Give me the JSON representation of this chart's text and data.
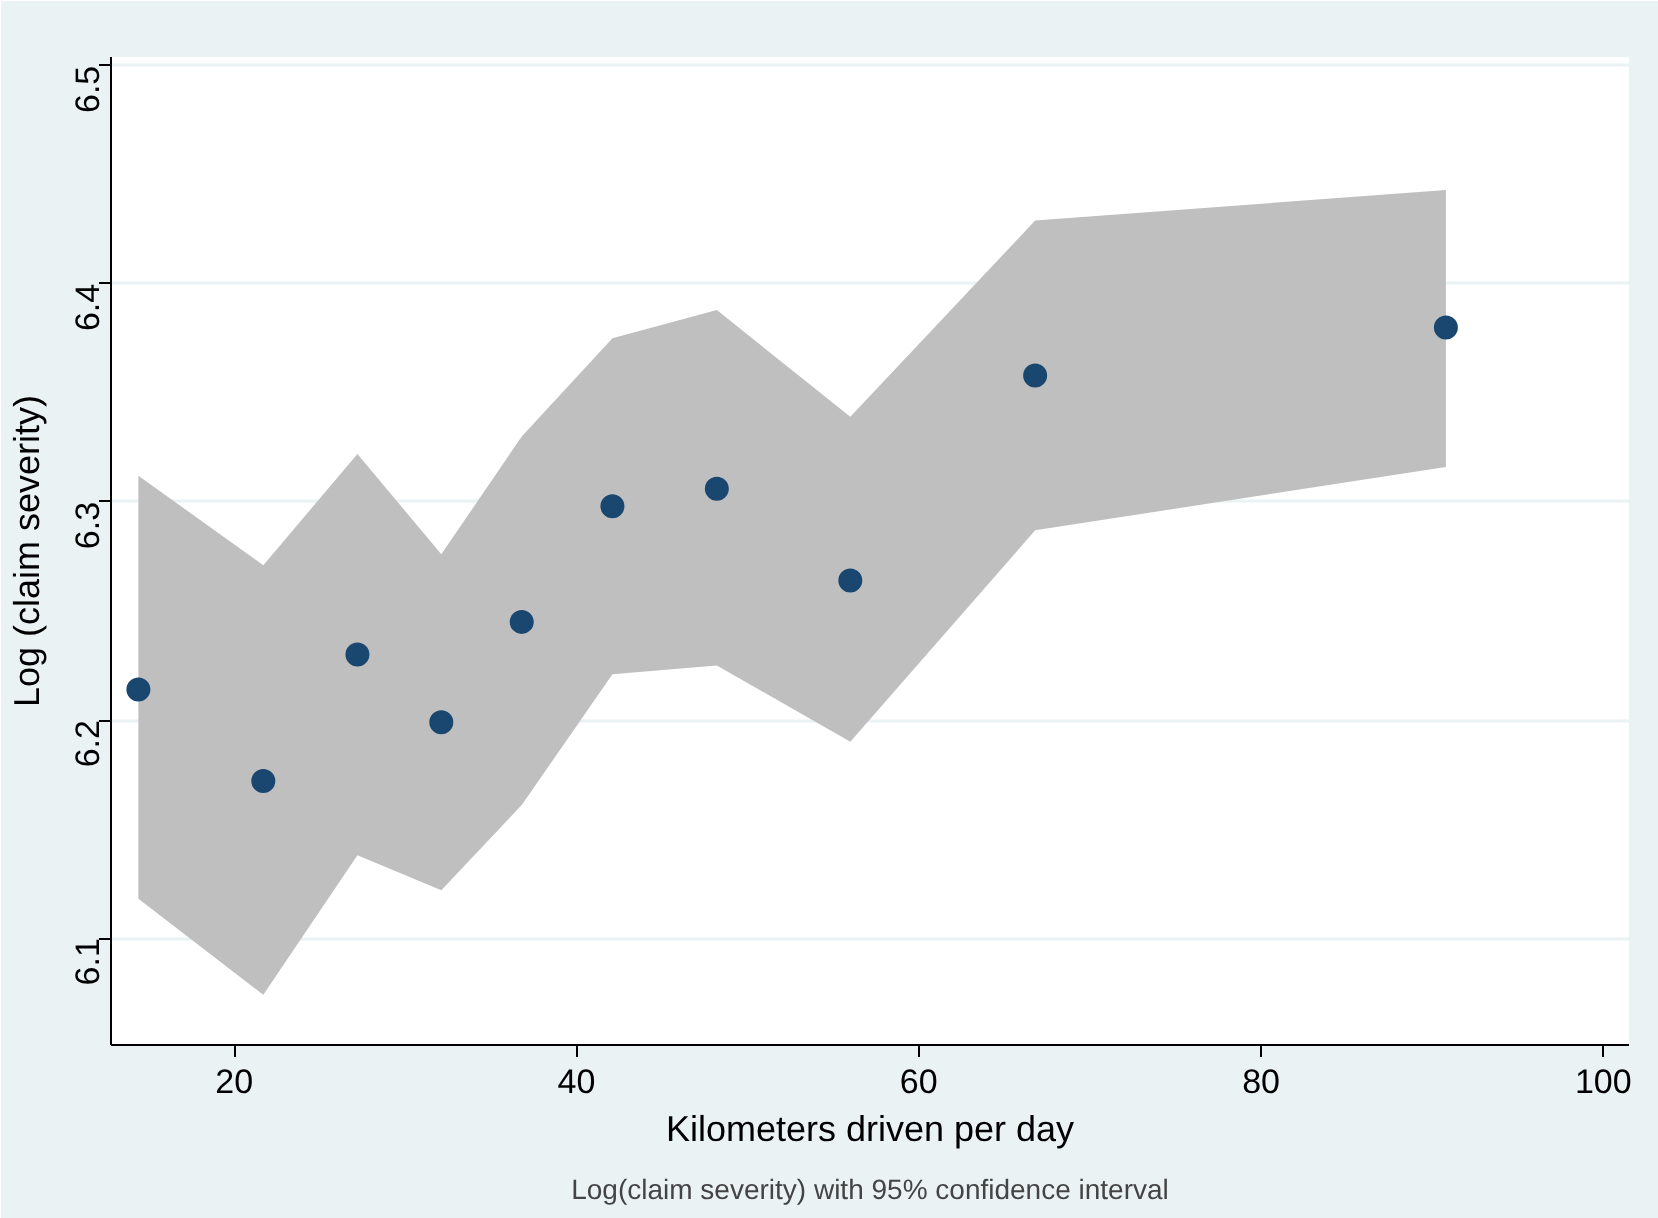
{
  "chart_data": {
    "type": "scatter",
    "xlabel": "Kilometers driven per day",
    "ylabel": "Log (claim severity)",
    "annotations": [
      "Log(claim severity) with 95% confidence interval"
    ],
    "x": [
      14.4,
      21.7,
      27.2,
      32.1,
      36.8,
      42.1,
      48.2,
      56.0,
      66.8,
      90.8
    ],
    "series": [
      {
        "color": "#1a476f",
        "values": [
          6.214,
          6.172,
          6.23,
          6.199,
          6.245,
          6.298,
          6.306,
          6.264,
          6.358,
          6.38
        ],
        "lower": [
          6.118,
          6.074,
          6.138,
          6.122,
          6.161,
          6.221,
          6.225,
          6.19,
          6.287,
          6.316
        ],
        "upper": [
          6.312,
          6.271,
          6.322,
          6.276,
          6.33,
          6.375,
          6.388,
          6.339,
          6.429,
          6.443
        ]
      }
    ],
    "xlim": [
      12.8,
      101.5
    ],
    "ylim": [
      6.051,
      6.504
    ],
    "xticks": [
      20,
      40,
      60,
      80,
      100
    ],
    "yticks": [
      6.1,
      6.2,
      6.3,
      6.4,
      6.5
    ],
    "grid": "y",
    "marker": "circle"
  }
}
